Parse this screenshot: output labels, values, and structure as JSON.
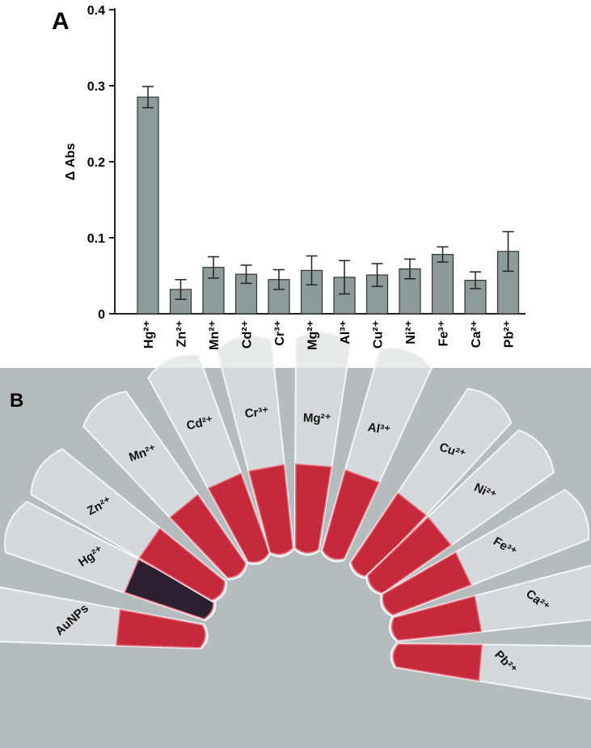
{
  "chart_data": {
    "type": "bar",
    "panel_label": "A",
    "y_label": "Δ Abs",
    "categories": [
      "Hg²⁺",
      "Zn²⁺",
      "Mn²⁺",
      "Cd²⁺",
      "Cr³⁺",
      "Mg²⁺",
      "Al³⁺",
      "Cu²⁺",
      "Ni²⁺",
      "Fe³⁺",
      "Ca²⁺",
      "Pb²⁺"
    ],
    "values": [
      0.285,
      0.032,
      0.061,
      0.052,
      0.045,
      0.057,
      0.048,
      0.051,
      0.059,
      0.078,
      0.044,
      0.082
    ],
    "errors": [
      0.014,
      0.013,
      0.014,
      0.012,
      0.013,
      0.019,
      0.022,
      0.015,
      0.013,
      0.01,
      0.011,
      0.026
    ],
    "color": "#8d9b9b",
    "ylim": [
      0,
      0.4
    ],
    "yticks": [
      0,
      0.1,
      0.2,
      0.3,
      0.4
    ]
  },
  "panel_b": {
    "panel_label": "B",
    "tube_labels": [
      "AuNPs",
      "Hg²⁺",
      "Zn²⁺",
      "Mn²⁺",
      "Cd²⁺",
      "Cr³⁺",
      "Mg²⁺",
      "Al³⁺",
      "Cu²⁺",
      "Ni²⁺",
      "Fe³⁺",
      "Ca²⁺",
      "Pb²⁺"
    ]
  }
}
